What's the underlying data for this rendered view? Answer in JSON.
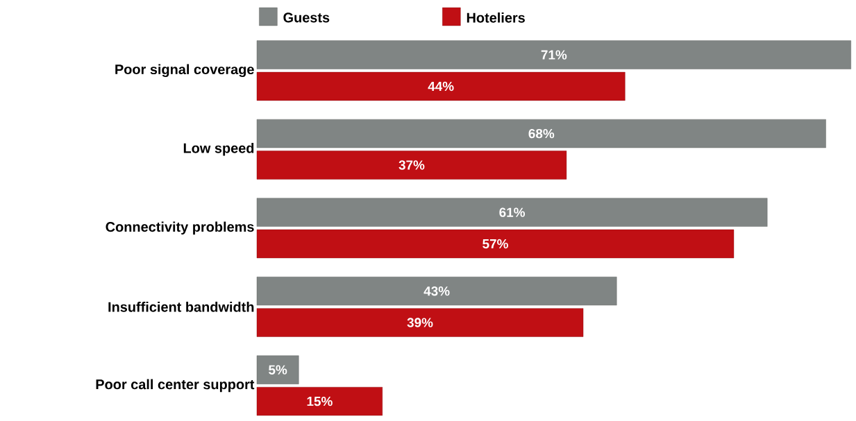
{
  "chart_data": {
    "type": "bar",
    "orientation": "horizontal",
    "legend": "top",
    "categories": [
      "Poor signal coverage",
      "Low speed",
      "Connectivity problems",
      "Insufficient bandwidth",
      "Poor call center support"
    ],
    "series": [
      {
        "name": "Guests",
        "color": "#808584",
        "values": [
          71,
          68,
          61,
          43,
          5
        ],
        "value_labels": [
          "71%",
          "68%",
          "61%",
          "43%",
          "5%"
        ]
      },
      {
        "name": "Hoteliers",
        "color": "#c00f14",
        "values": [
          44,
          37,
          57,
          39,
          15
        ],
        "value_labels": [
          "44%",
          "37%",
          "57%",
          "39%",
          "15%"
        ]
      }
    ]
  }
}
